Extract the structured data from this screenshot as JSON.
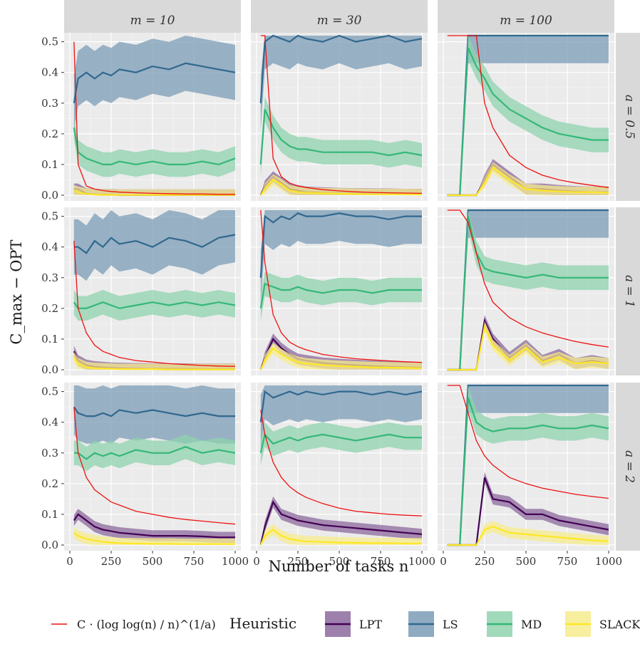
{
  "chart_data": {
    "type": "line",
    "facet_columns": [
      "m = 10",
      "m = 30",
      "m = 100"
    ],
    "facet_rows": [
      "a = 0.5",
      "a = 1",
      "a = 2"
    ],
    "xlabel": "Number of tasks n",
    "ylabel": "C_max − OPT",
    "xlim": [
      0,
      1000
    ],
    "ylim": [
      0,
      0.5
    ],
    "x_ticks": [
      "0",
      "250",
      "500",
      "750",
      "1000"
    ],
    "y_ticks": [
      "0.0",
      "0.1",
      "0.2",
      "0.3",
      "0.4",
      "0.5"
    ],
    "grid": true,
    "legend_position": "bottom",
    "legend_title": "Heuristic",
    "bound_label": "C · (log log(n) / n)^(1/a)",
    "x": [
      25,
      50,
      100,
      150,
      200,
      250,
      300,
      400,
      500,
      600,
      700,
      800,
      900,
      1000
    ],
    "series": [
      {
        "name": "LPT",
        "color": "#440154",
        "fill": "#8c6a9e"
      },
      {
        "name": "LS",
        "color": "#31688e",
        "fill": "#7b9cb7"
      },
      {
        "name": "MD",
        "color": "#35b779",
        "fill": "#8fd3ae"
      },
      {
        "name": "SLACK",
        "color": "#fde725",
        "fill": "#f7ec8d"
      }
    ],
    "panels": [
      {
        "row": 0,
        "col": 0,
        "LPT": [
          0.02,
          0.02,
          0.005,
          0.003,
          0.002,
          0.002,
          0.001,
          0.001,
          0.001,
          0.001,
          0.001,
          0.001,
          0.001,
          0.001
        ],
        "SLACK": [
          0.015,
          0.01,
          0.004,
          0.002,
          0.001,
          0.001,
          0.001,
          0.001,
          0.001,
          0.001,
          0.001,
          0.001,
          0.001,
          0.001
        ],
        "LS": [
          0.3,
          0.38,
          0.4,
          0.38,
          0.4,
          0.39,
          0.41,
          0.4,
          0.42,
          0.41,
          0.43,
          0.42,
          0.41,
          0.4
        ],
        "MD": [
          0.22,
          0.14,
          0.12,
          0.11,
          0.1,
          0.1,
          0.11,
          0.1,
          0.11,
          0.1,
          0.1,
          0.11,
          0.1,
          0.12
        ],
        "bound": [
          0.5,
          0.1,
          0.03,
          0.02,
          0.015,
          0.012,
          0.01,
          0.008,
          0.006,
          0.005,
          0.004,
          0.004,
          0.003,
          0.003
        ]
      },
      {
        "row": 0,
        "col": 1,
        "LPT": [
          0.0,
          0.03,
          0.06,
          0.04,
          0.02,
          0.015,
          0.01,
          0.008,
          0.006,
          0.005,
          0.004,
          0.004,
          0.003,
          0.003
        ],
        "SLACK": [
          0.0,
          0.02,
          0.05,
          0.035,
          0.015,
          0.01,
          0.008,
          0.006,
          0.005,
          0.004,
          0.003,
          0.003,
          0.003,
          0.002
        ],
        "LS": [
          0.3,
          0.5,
          0.52,
          0.51,
          0.5,
          0.52,
          0.51,
          0.5,
          0.52,
          0.5,
          0.51,
          0.52,
          0.5,
          0.51
        ],
        "MD": [
          0.1,
          0.28,
          0.22,
          0.18,
          0.16,
          0.15,
          0.15,
          0.14,
          0.14,
          0.14,
          0.14,
          0.13,
          0.14,
          0.13
        ],
        "bound": [
          0.52,
          0.52,
          0.12,
          0.06,
          0.04,
          0.03,
          0.025,
          0.018,
          0.014,
          0.011,
          0.009,
          0.008,
          0.007,
          0.006
        ]
      },
      {
        "row": 0,
        "col": 2,
        "LPT": [
          0.0,
          0.0,
          0.0,
          0.0,
          0.0,
          0.05,
          0.1,
          0.06,
          0.02,
          0.02,
          0.015,
          0.012,
          0.01,
          0.01
        ],
        "SLACK": [
          0.0,
          0.0,
          0.0,
          0.0,
          0.0,
          0.04,
          0.09,
          0.05,
          0.02,
          0.015,
          0.012,
          0.01,
          0.01,
          0.008
        ],
        "LS": [
          0.0,
          0.0,
          0.0,
          0.52,
          0.52,
          0.52,
          0.52,
          0.52,
          0.52,
          0.52,
          0.52,
          0.52,
          0.52,
          0.52
        ],
        "MD": [
          0.0,
          0.0,
          0.0,
          0.48,
          0.42,
          0.38,
          0.33,
          0.28,
          0.25,
          0.22,
          0.2,
          0.19,
          0.18,
          0.18
        ],
        "bound": [
          0.52,
          0.52,
          0.52,
          0.52,
          0.52,
          0.3,
          0.22,
          0.13,
          0.09,
          0.065,
          0.05,
          0.04,
          0.032,
          0.025
        ]
      },
      {
        "row": 1,
        "col": 0,
        "LPT": [
          0.06,
          0.03,
          0.015,
          0.01,
          0.008,
          0.006,
          0.005,
          0.004,
          0.003,
          0.003,
          0.003,
          0.002,
          0.002,
          0.002
        ],
        "SLACK": [
          0.04,
          0.02,
          0.008,
          0.005,
          0.004,
          0.003,
          0.002,
          0.002,
          0.002,
          0.001,
          0.001,
          0.001,
          0.001,
          0.001
        ],
        "LS": [
          0.4,
          0.4,
          0.38,
          0.42,
          0.4,
          0.43,
          0.41,
          0.42,
          0.4,
          0.43,
          0.42,
          0.4,
          0.43,
          0.44
        ],
        "MD": [
          0.22,
          0.2,
          0.2,
          0.21,
          0.22,
          0.21,
          0.2,
          0.21,
          0.22,
          0.21,
          0.22,
          0.21,
          0.22,
          0.21
        ],
        "bound": [
          0.42,
          0.2,
          0.12,
          0.08,
          0.06,
          0.05,
          0.04,
          0.03,
          0.025,
          0.02,
          0.017,
          0.014,
          0.012,
          0.011
        ]
      },
      {
        "row": 1,
        "col": 1,
        "LPT": [
          0.0,
          0.04,
          0.1,
          0.07,
          0.05,
          0.035,
          0.03,
          0.022,
          0.018,
          0.015,
          0.012,
          0.01,
          0.008,
          0.007
        ],
        "SLACK": [
          0.0,
          0.03,
          0.07,
          0.05,
          0.035,
          0.025,
          0.02,
          0.015,
          0.012,
          0.01,
          0.008,
          0.007,
          0.006,
          0.005
        ],
        "LS": [
          0.3,
          0.5,
          0.48,
          0.5,
          0.49,
          0.51,
          0.5,
          0.5,
          0.51,
          0.5,
          0.5,
          0.49,
          0.5,
          0.5
        ],
        "MD": [
          0.2,
          0.28,
          0.27,
          0.26,
          0.26,
          0.27,
          0.26,
          0.25,
          0.26,
          0.26,
          0.25,
          0.26,
          0.26,
          0.26
        ],
        "bound": [
          0.52,
          0.35,
          0.18,
          0.12,
          0.09,
          0.075,
          0.065,
          0.05,
          0.042,
          0.036,
          0.032,
          0.029,
          0.026,
          0.024
        ]
      },
      {
        "row": 1,
        "col": 2,
        "LPT": [
          0.0,
          0.0,
          0.0,
          0.0,
          0.0,
          0.16,
          0.1,
          0.04,
          0.08,
          0.03,
          0.05,
          0.02,
          0.03,
          0.02
        ],
        "SLACK": [
          0.0,
          0.0,
          0.0,
          0.0,
          0.0,
          0.14,
          0.08,
          0.03,
          0.07,
          0.025,
          0.04,
          0.02,
          0.025,
          0.02
        ],
        "LS": [
          0.0,
          0.0,
          0.0,
          0.52,
          0.52,
          0.52,
          0.52,
          0.52,
          0.52,
          0.52,
          0.52,
          0.52,
          0.52,
          0.52
        ],
        "MD": [
          0.0,
          0.0,
          0.0,
          0.5,
          0.38,
          0.33,
          0.32,
          0.31,
          0.3,
          0.31,
          0.3,
          0.3,
          0.3,
          0.3
        ],
        "bound": [
          0.52,
          0.52,
          0.52,
          0.48,
          0.38,
          0.28,
          0.22,
          0.17,
          0.14,
          0.12,
          0.105,
          0.092,
          0.082,
          0.074
        ]
      },
      {
        "row": 2,
        "col": 0,
        "LPT": [
          0.08,
          0.1,
          0.08,
          0.06,
          0.05,
          0.045,
          0.04,
          0.035,
          0.03,
          0.03,
          0.03,
          0.028,
          0.025,
          0.025
        ],
        "SLACK": [
          0.04,
          0.03,
          0.02,
          0.015,
          0.01,
          0.008,
          0.006,
          0.005,
          0.004,
          0.004,
          0.003,
          0.003,
          0.003,
          0.003
        ],
        "LS": [
          0.45,
          0.43,
          0.42,
          0.42,
          0.43,
          0.42,
          0.44,
          0.43,
          0.44,
          0.43,
          0.42,
          0.43,
          0.42,
          0.42
        ],
        "MD": [
          0.3,
          0.3,
          0.28,
          0.3,
          0.29,
          0.3,
          0.29,
          0.31,
          0.3,
          0.3,
          0.32,
          0.3,
          0.31,
          0.3
        ],
        "bound": [
          0.45,
          0.3,
          0.22,
          0.18,
          0.16,
          0.14,
          0.13,
          0.11,
          0.1,
          0.09,
          0.083,
          0.078,
          0.073,
          0.068
        ]
      },
      {
        "row": 2,
        "col": 1,
        "LPT": [
          0.0,
          0.06,
          0.14,
          0.1,
          0.09,
          0.08,
          0.075,
          0.065,
          0.06,
          0.055,
          0.05,
          0.045,
          0.04,
          0.035
        ],
        "SLACK": [
          0.0,
          0.03,
          0.05,
          0.03,
          0.02,
          0.015,
          0.012,
          0.01,
          0.008,
          0.007,
          0.006,
          0.006,
          0.005,
          0.005
        ],
        "LS": [
          0.4,
          0.5,
          0.48,
          0.49,
          0.5,
          0.49,
          0.5,
          0.49,
          0.5,
          0.5,
          0.49,
          0.5,
          0.49,
          0.5
        ],
        "MD": [
          0.3,
          0.36,
          0.33,
          0.34,
          0.35,
          0.34,
          0.35,
          0.36,
          0.35,
          0.34,
          0.35,
          0.36,
          0.35,
          0.35
        ],
        "bound": [
          0.44,
          0.36,
          0.27,
          0.22,
          0.19,
          0.17,
          0.155,
          0.135,
          0.12,
          0.11,
          0.105,
          0.1,
          0.097,
          0.095
        ]
      },
      {
        "row": 2,
        "col": 2,
        "LPT": [
          0.0,
          0.0,
          0.0,
          0.0,
          0.0,
          0.22,
          0.15,
          0.14,
          0.1,
          0.1,
          0.08,
          0.07,
          0.06,
          0.05
        ],
        "SLACK": [
          0.0,
          0.0,
          0.0,
          0.0,
          0.0,
          0.05,
          0.06,
          0.04,
          0.035,
          0.03,
          0.025,
          0.02,
          0.015,
          0.012
        ],
        "LS": [
          0.0,
          0.0,
          0.0,
          0.52,
          0.52,
          0.52,
          0.52,
          0.52,
          0.52,
          0.52,
          0.52,
          0.52,
          0.52,
          0.52
        ],
        "MD": [
          0.0,
          0.0,
          0.0,
          0.48,
          0.4,
          0.38,
          0.37,
          0.38,
          0.38,
          0.39,
          0.38,
          0.38,
          0.39,
          0.38
        ],
        "bound": [
          0.52,
          0.52,
          0.52,
          0.43,
          0.34,
          0.29,
          0.26,
          0.22,
          0.2,
          0.185,
          0.175,
          0.165,
          0.158,
          0.152
        ]
      }
    ]
  }
}
